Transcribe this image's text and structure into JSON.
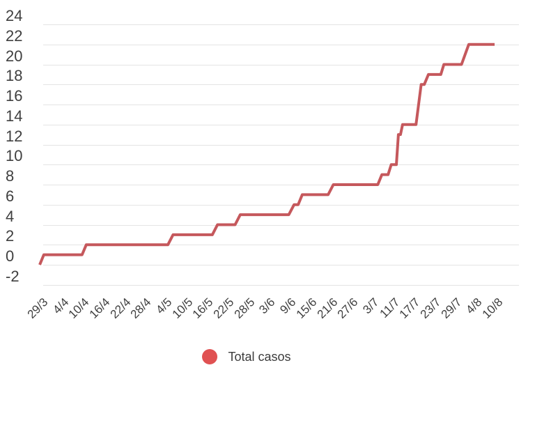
{
  "chart_data": {
    "type": "line",
    "subtype": "step",
    "title": "",
    "xlabel": "",
    "ylabel": "",
    "x_tick_labels": [
      "29/3",
      "4/4",
      "10/4",
      "16/4",
      "22/4",
      "28/4",
      "4/5",
      "10/5",
      "16/5",
      "22/5",
      "28/5",
      "3/6",
      "9/6",
      "15/6",
      "21/6",
      "27/6",
      "3/7",
      "11/7",
      "17/7",
      "23/7",
      "29/7",
      "4/8",
      "10/8"
    ],
    "y_tick_labels": [
      "24",
      "22",
      "20",
      "18",
      "16",
      "14",
      "12",
      "10",
      "8",
      "6",
      "4",
      "2",
      "0",
      "-2"
    ],
    "ylim": [
      -2,
      24
    ],
    "xlim_label_units": [
      0,
      22
    ],
    "grid": true,
    "legend": {
      "label": "Total casos",
      "dot_color": "#e05152",
      "position": "bottom-center"
    },
    "series": [
      {
        "name": "Total casos",
        "color": "#c5585c",
        "points_label_units_vs_cases": [
          [
            0,
            0
          ],
          [
            0.2,
            1
          ],
          [
            2.05,
            1
          ],
          [
            2.25,
            2
          ],
          [
            6.2,
            2
          ],
          [
            6.45,
            3
          ],
          [
            8.35,
            3
          ],
          [
            8.6,
            4
          ],
          [
            9.45,
            4
          ],
          [
            9.7,
            5
          ],
          [
            12.05,
            5
          ],
          [
            12.3,
            6
          ],
          [
            12.5,
            6
          ],
          [
            12.7,
            7
          ],
          [
            13.95,
            7
          ],
          [
            14.2,
            8
          ],
          [
            16.35,
            8
          ],
          [
            16.55,
            9
          ],
          [
            16.85,
            9
          ],
          [
            17,
            10
          ],
          [
            17.25,
            10
          ],
          [
            17.35,
            13
          ],
          [
            17.45,
            13
          ],
          [
            17.55,
            14
          ],
          [
            18.2,
            14
          ],
          [
            18.45,
            18
          ],
          [
            18.6,
            18
          ],
          [
            18.8,
            19
          ],
          [
            19.4,
            19
          ],
          [
            19.55,
            20
          ],
          [
            20.4,
            20
          ],
          [
            20.75,
            22
          ],
          [
            22,
            22
          ]
        ]
      }
    ]
  },
  "colors": {
    "background": "#ffffff",
    "gridline": "#e4e4e4",
    "tick_text": "#3f3f3f",
    "line": "#c5585c",
    "legend_dot": "#e05152"
  }
}
